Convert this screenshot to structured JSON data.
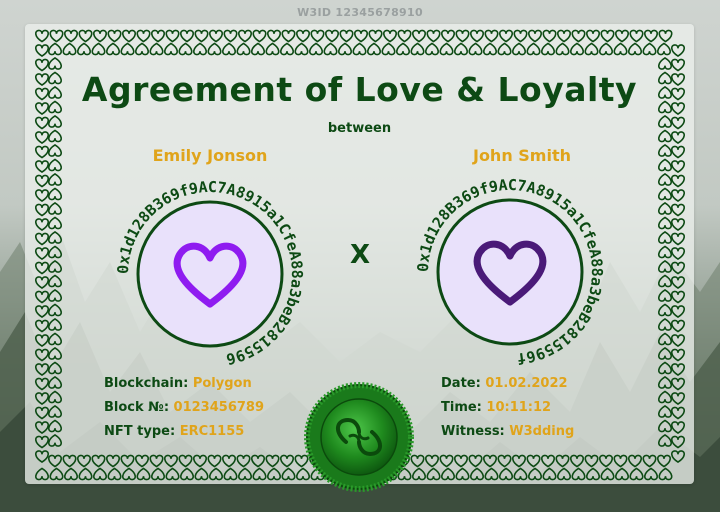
{
  "header": {
    "id_label": "W3ID 12345678910"
  },
  "certificate": {
    "title": "Agreement of Love & Loyalty",
    "between": "between",
    "separator": "X",
    "party1": {
      "name": "Emily Jonson",
      "address": "0x1d128B369f9AC7A8915a1CfeA88a3beB2815596"
    },
    "party2": {
      "name": "John Smith",
      "address": "0x1d128B369f9AC7A8915a1CfeA88a3beB2815596f"
    },
    "left_info": [
      {
        "label": "Blockchain:",
        "value": "Polygon"
      },
      {
        "label": "Block №:",
        "value": "0123456789"
      },
      {
        "label": "NFT type:",
        "value": "ERC1155"
      }
    ],
    "right_info": [
      {
        "label": "Date:",
        "value": "01.02.2022"
      },
      {
        "label": "Time:",
        "value": "10:11:12"
      },
      {
        "label": "Witness:",
        "value": "W3dding"
      }
    ]
  },
  "colors": {
    "green": "#0d4a14",
    "gold": "#e0a41b",
    "heart_purple_left": "#8f1cf0",
    "heart_purple_right": "#4a1a78",
    "circle_fill": "#e9e1fb"
  },
  "icons": {
    "heart": "heart-icon",
    "seal": "wax-seal-icon"
  }
}
